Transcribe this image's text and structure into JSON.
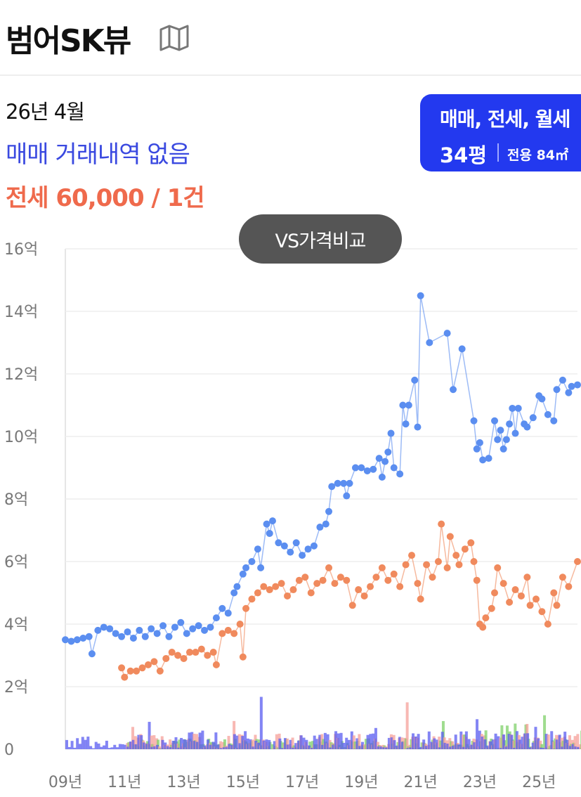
{
  "header": {
    "title": "범어SK뷰",
    "map_icon": "map-icon"
  },
  "summary": {
    "date": "26년 4월",
    "sale_text": "매매 거래내역 없음",
    "rent_text": "전세 60,000 / 1건"
  },
  "badge": {
    "types": "매매, 전세, 월세",
    "pyeong": "34평",
    "area": "전용 84㎡"
  },
  "compare_button": "VS가격비교",
  "colors": {
    "sale": "#5b8ef0",
    "rent": "#f08a5d",
    "volume_sale": "#5a5cf0",
    "volume_rent": "#f5a09a",
    "volume_monthly": "#7fd06a",
    "badge": "#2339ef"
  },
  "chart_data": {
    "type": "line",
    "y_unit": "억",
    "ylim": [
      0,
      16
    ],
    "y_ticks": [
      "0",
      "2억",
      "4억",
      "6억",
      "8억",
      "10억",
      "12억",
      "14억",
      "16억"
    ],
    "x_ticks": [
      {
        "label": "09년",
        "x": 2009
      },
      {
        "label": "11년",
        "x": 2011
      },
      {
        "label": "13년",
        "x": 2013
      },
      {
        "label": "15년",
        "x": 2015
      },
      {
        "label": "17년",
        "x": 2017
      },
      {
        "label": "19년",
        "x": 2019
      },
      {
        "label": "21년",
        "x": 2021
      },
      {
        "label": "23년",
        "x": 2023
      },
      {
        "label": "25년",
        "x": 2025
      }
    ],
    "xlim": [
      2009,
      2026.3
    ],
    "series": [
      {
        "key": "sale",
        "points": [
          [
            2009.0,
            3.5
          ],
          [
            2009.2,
            3.45
          ],
          [
            2009.4,
            3.5
          ],
          [
            2009.6,
            3.55
          ],
          [
            2009.8,
            3.6
          ],
          [
            2009.9,
            3.05
          ],
          [
            2010.1,
            3.8
          ],
          [
            2010.3,
            3.9
          ],
          [
            2010.5,
            3.85
          ],
          [
            2010.7,
            3.7
          ],
          [
            2010.9,
            3.6
          ],
          [
            2011.1,
            3.75
          ],
          [
            2011.3,
            3.55
          ],
          [
            2011.5,
            3.8
          ],
          [
            2011.7,
            3.6
          ],
          [
            2011.9,
            3.85
          ],
          [
            2012.1,
            3.7
          ],
          [
            2012.3,
            3.95
          ],
          [
            2012.5,
            3.6
          ],
          [
            2012.7,
            3.9
          ],
          [
            2012.9,
            4.05
          ],
          [
            2013.1,
            3.7
          ],
          [
            2013.3,
            3.85
          ],
          [
            2013.5,
            3.95
          ],
          [
            2013.7,
            3.8
          ],
          [
            2013.9,
            3.9
          ],
          [
            2014.1,
            4.2
          ],
          [
            2014.3,
            4.5
          ],
          [
            2014.5,
            4.35
          ],
          [
            2014.7,
            5.0
          ],
          [
            2014.8,
            5.2
          ],
          [
            2015.0,
            5.6
          ],
          [
            2015.1,
            5.8
          ],
          [
            2015.3,
            6.0
          ],
          [
            2015.5,
            6.4
          ],
          [
            2015.6,
            5.8
          ],
          [
            2015.8,
            7.2
          ],
          [
            2015.9,
            6.9
          ],
          [
            2016.0,
            7.3
          ],
          [
            2016.2,
            6.6
          ],
          [
            2016.4,
            6.5
          ],
          [
            2016.6,
            6.3
          ],
          [
            2016.8,
            6.6
          ],
          [
            2017.0,
            6.2
          ],
          [
            2017.2,
            6.4
          ],
          [
            2017.4,
            6.5
          ],
          [
            2017.6,
            7.1
          ],
          [
            2017.8,
            7.2
          ],
          [
            2017.9,
            7.6
          ],
          [
            2018.0,
            8.4
          ],
          [
            2018.2,
            8.5
          ],
          [
            2018.4,
            8.5
          ],
          [
            2018.5,
            8.1
          ],
          [
            2018.6,
            8.5
          ],
          [
            2018.8,
            9.0
          ],
          [
            2019.0,
            9.0
          ],
          [
            2019.2,
            8.9
          ],
          [
            2019.4,
            8.95
          ],
          [
            2019.6,
            9.3
          ],
          [
            2019.7,
            8.7
          ],
          [
            2019.8,
            9.2
          ],
          [
            2019.9,
            9.5
          ],
          [
            2020.0,
            10.1
          ],
          [
            2020.1,
            9.0
          ],
          [
            2020.3,
            8.8
          ],
          [
            2020.4,
            11.0
          ],
          [
            2020.5,
            10.4
          ],
          [
            2020.6,
            11.0
          ],
          [
            2020.8,
            11.8
          ],
          [
            2020.9,
            10.3
          ],
          [
            2021.0,
            14.5
          ],
          [
            2021.3,
            13.0
          ],
          [
            2021.9,
            13.3
          ],
          [
            2022.1,
            11.5
          ],
          [
            2022.4,
            12.8
          ],
          [
            2022.8,
            10.5
          ],
          [
            2022.9,
            9.6
          ],
          [
            2023.0,
            9.8
          ],
          [
            2023.1,
            9.25
          ],
          [
            2023.3,
            9.3
          ],
          [
            2023.5,
            10.5
          ],
          [
            2023.6,
            9.9
          ],
          [
            2023.7,
            10.2
          ],
          [
            2023.8,
            9.6
          ],
          [
            2023.9,
            9.9
          ],
          [
            2024.0,
            10.4
          ],
          [
            2024.1,
            10.9
          ],
          [
            2024.2,
            10.1
          ],
          [
            2024.3,
            10.9
          ],
          [
            2024.5,
            10.4
          ],
          [
            2024.6,
            10.3
          ],
          [
            2024.8,
            10.6
          ],
          [
            2025.0,
            11.3
          ],
          [
            2025.1,
            11.2
          ],
          [
            2025.3,
            10.7
          ],
          [
            2025.5,
            10.5
          ],
          [
            2025.6,
            11.5
          ],
          [
            2025.8,
            11.8
          ],
          [
            2026.0,
            11.4
          ],
          [
            2026.1,
            11.6
          ],
          [
            2026.3,
            11.65
          ]
        ]
      },
      {
        "key": "rent",
        "points": [
          [
            2010.9,
            2.6
          ],
          [
            2011.0,
            2.3
          ],
          [
            2011.2,
            2.5
          ],
          [
            2011.4,
            2.5
          ],
          [
            2011.6,
            2.6
          ],
          [
            2011.8,
            2.7
          ],
          [
            2012.0,
            2.8
          ],
          [
            2012.2,
            2.5
          ],
          [
            2012.4,
            2.9
          ],
          [
            2012.6,
            3.1
          ],
          [
            2012.8,
            3.0
          ],
          [
            2013.0,
            2.9
          ],
          [
            2013.2,
            3.1
          ],
          [
            2013.4,
            3.1
          ],
          [
            2013.6,
            3.2
          ],
          [
            2013.8,
            3.0
          ],
          [
            2014.0,
            3.1
          ],
          [
            2014.1,
            2.7
          ],
          [
            2014.3,
            3.7
          ],
          [
            2014.5,
            3.8
          ],
          [
            2014.7,
            3.7
          ],
          [
            2014.9,
            4.0
          ],
          [
            2015.0,
            2.95
          ],
          [
            2015.1,
            4.5
          ],
          [
            2015.3,
            4.8
          ],
          [
            2015.5,
            5.0
          ],
          [
            2015.7,
            5.2
          ],
          [
            2015.9,
            5.1
          ],
          [
            2016.1,
            5.2
          ],
          [
            2016.3,
            5.3
          ],
          [
            2016.5,
            4.9
          ],
          [
            2016.7,
            5.1
          ],
          [
            2016.9,
            5.4
          ],
          [
            2017.1,
            5.5
          ],
          [
            2017.3,
            5.0
          ],
          [
            2017.5,
            5.3
          ],
          [
            2017.7,
            5.4
          ],
          [
            2017.9,
            5.8
          ],
          [
            2018.1,
            5.3
          ],
          [
            2018.3,
            5.5
          ],
          [
            2018.5,
            5.4
          ],
          [
            2018.7,
            4.6
          ],
          [
            2018.9,
            5.1
          ],
          [
            2019.1,
            4.9
          ],
          [
            2019.3,
            5.2
          ],
          [
            2019.5,
            5.5
          ],
          [
            2019.7,
            5.8
          ],
          [
            2019.9,
            5.4
          ],
          [
            2020.1,
            5.6
          ],
          [
            2020.3,
            5.2
          ],
          [
            2020.5,
            5.9
          ],
          [
            2020.7,
            6.2
          ],
          [
            2020.9,
            5.3
          ],
          [
            2021.0,
            4.8
          ],
          [
            2021.2,
            5.9
          ],
          [
            2021.4,
            5.5
          ],
          [
            2021.6,
            6.0
          ],
          [
            2021.7,
            7.2
          ],
          [
            2021.9,
            5.8
          ],
          [
            2022.0,
            6.8
          ],
          [
            2022.2,
            6.2
          ],
          [
            2022.3,
            5.9
          ],
          [
            2022.5,
            6.4
          ],
          [
            2022.7,
            6.6
          ],
          [
            2022.8,
            6.0
          ],
          [
            2022.9,
            5.4
          ],
          [
            2023.0,
            4.0
          ],
          [
            2023.1,
            3.9
          ],
          [
            2023.2,
            4.2
          ],
          [
            2023.4,
            4.5
          ],
          [
            2023.5,
            5.0
          ],
          [
            2023.6,
            5.8
          ],
          [
            2023.8,
            5.3
          ],
          [
            2024.0,
            4.7
          ],
          [
            2024.2,
            5.1
          ],
          [
            2024.4,
            4.9
          ],
          [
            2024.6,
            5.5
          ],
          [
            2024.7,
            4.6
          ],
          [
            2024.9,
            4.8
          ],
          [
            2025.1,
            4.4
          ],
          [
            2025.3,
            4.0
          ],
          [
            2025.5,
            5.0
          ],
          [
            2025.6,
            4.6
          ],
          [
            2025.8,
            5.5
          ],
          [
            2026.0,
            5.2
          ],
          [
            2026.3,
            6.0
          ]
        ]
      }
    ],
    "volume_max": 3.0
  }
}
